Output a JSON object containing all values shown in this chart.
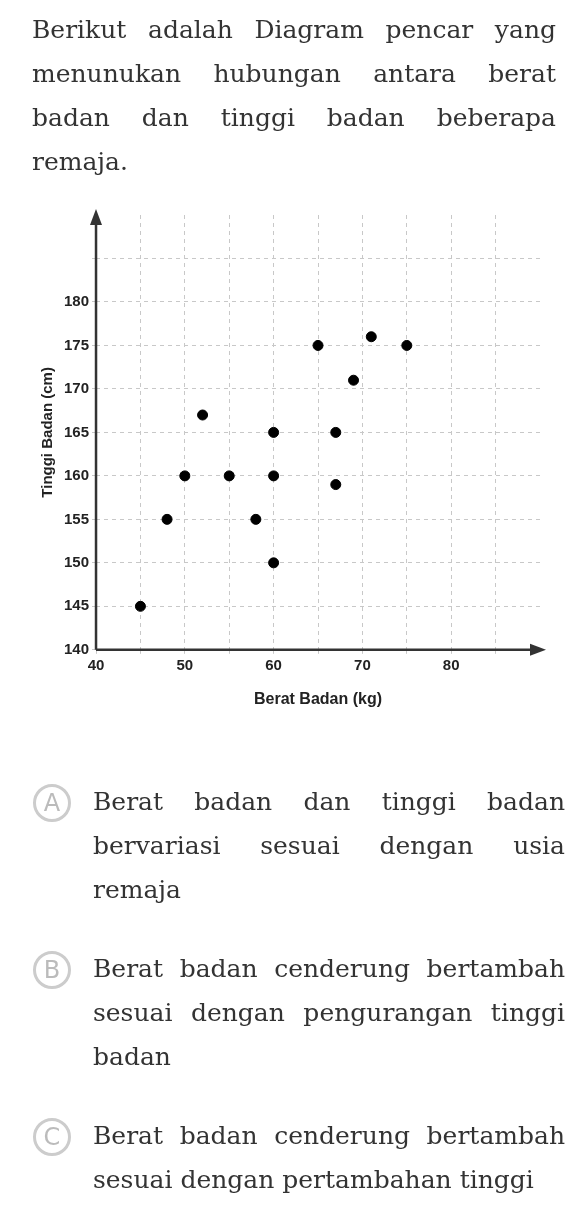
{
  "chart_data": {
    "type": "scatter",
    "title": "Berikut adalah Diagram pencar yang menunukan hubungan antara berat badan dan tinggi badan beberapa remaja.",
    "xlabel": "Berat Badan (kg)",
    "ylabel": "Tinggi Badan (cm)",
    "x": [
      45,
      48,
      50,
      52,
      55,
      58,
      60,
      60,
      60,
      65,
      67,
      67,
      69,
      71,
      75
    ],
    "series": [
      {
        "color": "#000000",
        "values": [
          145,
          155,
          160,
          167,
          160,
          155,
          165,
          160,
          150,
          175,
          165,
          159,
          171,
          176,
          175
        ]
      }
    ],
    "xlim": [
      40,
      90
    ],
    "ylim": [
      140,
      190
    ],
    "xticks": [
      40,
      {
        "value": 45,
        "label": null
      },
      50,
      {
        "value": 55,
        "label": null
      },
      60,
      {
        "value": 65,
        "label": null
      },
      70,
      {
        "value": 75,
        "label": null
      },
      80,
      {
        "value": 85,
        "label": null
      }
    ],
    "yticks": [
      140,
      145,
      150,
      155,
      160,
      165,
      170,
      175,
      180,
      {
        "value": 185,
        "label": null
      }
    ],
    "grid": true,
    "marker": "circle",
    "legend": false,
    "annotations": [
      "A",
      "Berat badan dan tinggi badan bervariasi sesuai dengan usia remaja",
      "B",
      "Berat badan cenderung bertambah sesuai dengan pengurangan tinggi badan",
      "C",
      "Berat badan cenderung bertambah sesuai dengan pertambahan tinggi"
    ]
  }
}
